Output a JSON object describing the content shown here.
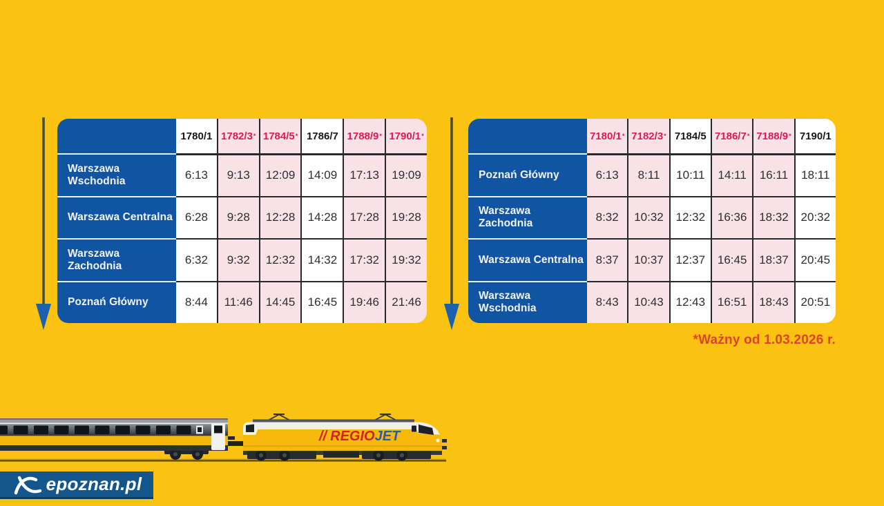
{
  "colors": {
    "yellow": "#FCC211",
    "blue": "#1254A4",
    "pink": "#F8E1E7",
    "crimson": "#DC1A5A",
    "line": "#26292C",
    "timeText": "#2E2E2E",
    "headerText": "#17171A",
    "footnote": "#E0432A",
    "arrowLine": "#40503A",
    "arrowHead": "#1D61AD",
    "wmBlue": "#13568C"
  },
  "asterisk_char": "*",
  "tables": [
    {
      "columns": [
        {
          "label": "1780/1",
          "asterisk": false,
          "highlight": false
        },
        {
          "label": "1782/3",
          "asterisk": true,
          "highlight": true
        },
        {
          "label": "1784/5",
          "asterisk": true,
          "highlight": true
        },
        {
          "label": "1786/7",
          "asterisk": false,
          "highlight": false
        },
        {
          "label": "1788/9",
          "asterisk": true,
          "highlight": true
        },
        {
          "label": "1790/1",
          "asterisk": true,
          "highlight": true
        }
      ],
      "rows": [
        {
          "station": "Warszawa Wschodnia",
          "times": [
            "6:13",
            "9:13",
            "12:09",
            "14:09",
            "17:13",
            "19:09"
          ]
        },
        {
          "station": "Warszawa Centralna",
          "times": [
            "6:28",
            "9:28",
            "12:28",
            "14:28",
            "17:28",
            "19:28"
          ]
        },
        {
          "station": "Warszawa Zachodnia",
          "times": [
            "6:32",
            "9:32",
            "12:32",
            "14:32",
            "17:32",
            "19:32"
          ]
        },
        {
          "station": "Poznań Główny",
          "times": [
            "8:44",
            "11:46",
            "14:45",
            "16:45",
            "19:46",
            "21:46"
          ]
        }
      ]
    },
    {
      "columns": [
        {
          "label": "7180/1",
          "asterisk": true,
          "highlight": true
        },
        {
          "label": "7182/3",
          "asterisk": true,
          "highlight": true
        },
        {
          "label": "7184/5",
          "asterisk": false,
          "highlight": false
        },
        {
          "label": "7186/7",
          "asterisk": true,
          "highlight": true
        },
        {
          "label": "7188/9",
          "asterisk": true,
          "highlight": true
        },
        {
          "label": "7190/1",
          "asterisk": false,
          "highlight": false
        }
      ],
      "rows": [
        {
          "station": "Poznań Główny",
          "times": [
            "6:13",
            "8:11",
            "10:11",
            "14:11",
            "16:11",
            "18:11"
          ]
        },
        {
          "station": "Warszawa Zachodnia",
          "times": [
            "8:32",
            "10:32",
            "12:32",
            "16:36",
            "18:32",
            "20:32"
          ]
        },
        {
          "station": "Warszawa Centralna",
          "times": [
            "8:37",
            "10:37",
            "12:37",
            "16:45",
            "18:37",
            "20:45"
          ]
        },
        {
          "station": "Warszawa Wschodnia",
          "times": [
            "8:43",
            "10:43",
            "12:43",
            "16:51",
            "18:43",
            "20:51"
          ]
        }
      ]
    }
  ],
  "footnote": "*Ważny od 1.03.2026 r.",
  "train": {
    "logo": {
      "slashes": "//",
      "regio": "REGIO",
      "jet": "JET"
    }
  },
  "watermark": {
    "text": "epoznan.pl"
  }
}
